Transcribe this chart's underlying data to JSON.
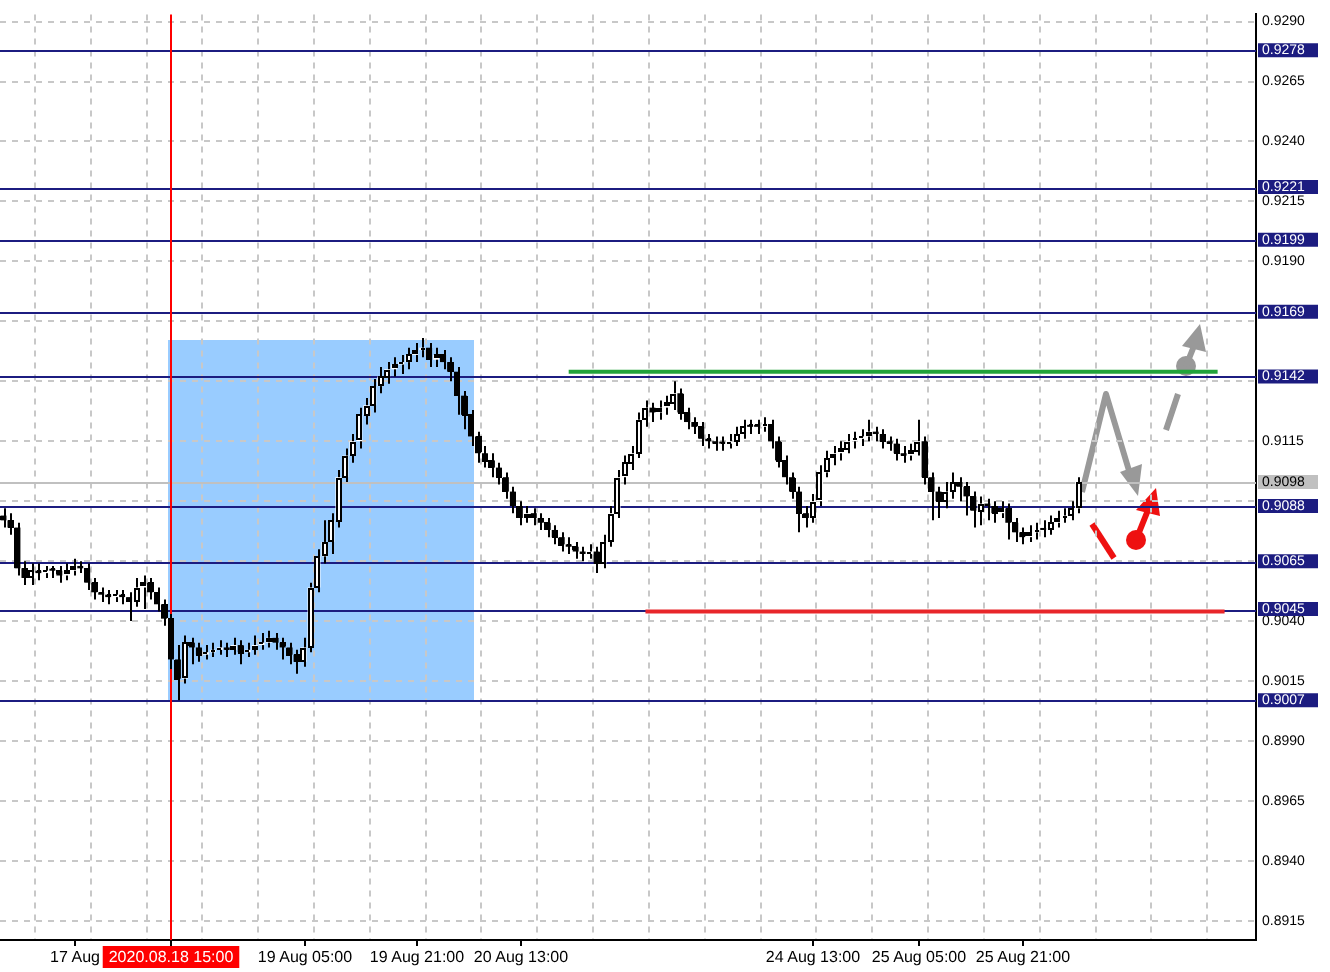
{
  "chart_data": {
    "type": "candlestick",
    "color": "#000000",
    "grid": true,
    "legend": false,
    "categories": [
      null,
      null,
      null,
      null,
      null,
      null,
      null,
      null,
      null,
      null,
      "17 Aug",
      null,
      null,
      null,
      null,
      null,
      null,
      null,
      null,
      null,
      null,
      null,
      null,
      null,
      "2020.08.18 15:00",
      null,
      null,
      null,
      null,
      null,
      null,
      null,
      null,
      null,
      null,
      null,
      null,
      null,
      null,
      null,
      null,
      null,
      null,
      "19 Aug 05:00",
      null,
      null,
      null,
      null,
      null,
      null,
      null,
      null,
      null,
      null,
      null,
      null,
      null,
      null,
      null,
      "19 Aug 21:00",
      null,
      null,
      null,
      null,
      null,
      null,
      null,
      null,
      null,
      null,
      null,
      null,
      null,
      null,
      "20 Aug 13:00",
      null,
      null,
      null,
      null,
      null,
      null,
      null,
      null,
      null,
      null,
      null,
      null,
      null,
      null,
      null,
      null,
      null,
      null,
      null,
      null,
      null,
      null,
      null,
      null,
      null,
      null,
      null,
      null,
      null,
      null,
      null,
      null,
      null,
      null,
      null,
      null,
      null,
      null,
      null,
      null,
      null,
      "24 Aug 13:00",
      null,
      null,
      null,
      null,
      null,
      null,
      null,
      null,
      null,
      null,
      null,
      null,
      null,
      null,
      "25 Aug 05:00",
      null,
      null,
      null,
      null,
      null,
      null,
      null,
      null,
      null,
      null,
      null,
      null,
      null,
      null,
      "25 Aug 21:00",
      null,
      null,
      null,
      null,
      null,
      null,
      null,
      null,
      null,
      null,
      null,
      null,
      null,
      null,
      null,
      null,
      null,
      null,
      null,
      null,
      null,
      null,
      null,
      null,
      null,
      null,
      null,
      null,
      null,
      null,
      null,
      null,
      null
    ],
    "ohlc": [
      [
        0.9084,
        0.9087,
        0.9079,
        0.9082
      ],
      [
        0.9082,
        0.9085,
        0.9076,
        0.9079
      ],
      [
        0.9079,
        0.9081,
        0.9059,
        0.9062
      ],
      [
        0.9062,
        0.9065,
        0.9055,
        0.9058
      ],
      [
        0.9058,
        0.9064,
        0.9055,
        0.9061
      ],
      [
        0.9061,
        0.9064,
        0.9057,
        0.906
      ],
      [
        0.906,
        0.9063,
        0.9058,
        0.9061
      ],
      [
        0.9061,
        0.9063,
        0.9058,
        0.9061
      ],
      [
        0.9061,
        0.9063,
        0.9056,
        0.9059
      ],
      [
        0.9059,
        0.9064,
        0.9057,
        0.9061
      ],
      [
        0.9061,
        0.9066,
        0.9059,
        0.9063
      ],
      [
        0.9063,
        0.9065,
        0.906,
        0.9062
      ],
      [
        0.9062,
        0.9064,
        0.9053,
        0.9056
      ],
      [
        0.9056,
        0.9058,
        0.9049,
        0.9052
      ],
      [
        0.9052,
        0.9054,
        0.9048,
        0.9051
      ],
      [
        0.9051,
        0.9053,
        0.9047,
        0.905
      ],
      [
        0.905,
        0.9053,
        0.9048,
        0.9051
      ],
      [
        0.9051,
        0.9053,
        0.9047,
        0.905
      ],
      [
        0.905,
        0.9052,
        0.904,
        0.9048
      ],
      [
        0.9048,
        0.9058,
        0.9046,
        0.9054
      ],
      [
        0.9054,
        0.9059,
        0.9045,
        0.9056
      ],
      [
        0.9056,
        0.9058,
        0.9049,
        0.9052
      ],
      [
        0.9052,
        0.9054,
        0.9044,
        0.9047
      ],
      [
        0.9047,
        0.9049,
        0.9038,
        0.9041
      ],
      [
        0.9041,
        0.9043,
        0.902,
        0.9024
      ],
      [
        0.9024,
        0.903,
        0.9007,
        0.9016
      ],
      [
        0.9016,
        0.9034,
        0.9014,
        0.9031
      ],
      [
        0.9031,
        0.9033,
        0.9022,
        0.9029
      ],
      [
        0.9029,
        0.9031,
        0.9023,
        0.9026
      ],
      [
        0.9026,
        0.903,
        0.9024,
        0.9027
      ],
      [
        0.9027,
        0.9031,
        0.9025,
        0.9028
      ],
      [
        0.9028,
        0.9032,
        0.9026,
        0.9029
      ],
      [
        0.9029,
        0.9031,
        0.9025,
        0.9028
      ],
      [
        0.9028,
        0.9033,
        0.9026,
        0.903
      ],
      [
        0.903,
        0.9032,
        0.9022,
        0.9027
      ],
      [
        0.9027,
        0.9031,
        0.9025,
        0.9028
      ],
      [
        0.9028,
        0.9034,
        0.9026,
        0.903
      ],
      [
        0.903,
        0.9035,
        0.9028,
        0.9031
      ],
      [
        0.9031,
        0.9036,
        0.9029,
        0.9033
      ],
      [
        0.9033,
        0.9035,
        0.9028,
        0.9031
      ],
      [
        0.9031,
        0.9033,
        0.9024,
        0.9029
      ],
      [
        0.9029,
        0.9031,
        0.9022,
        0.9026
      ],
      [
        0.9026,
        0.9028,
        0.9018,
        0.9023
      ],
      [
        0.9023,
        0.9033,
        0.9021,
        0.9029
      ],
      [
        0.9029,
        0.9056,
        0.9027,
        0.9054
      ],
      [
        0.9054,
        0.907,
        0.9052,
        0.9067
      ],
      [
        0.9067,
        0.9082,
        0.9064,
        0.9073
      ],
      [
        0.9073,
        0.9085,
        0.9068,
        0.9082
      ],
      [
        0.9082,
        0.9103,
        0.9079,
        0.91
      ],
      [
        0.91,
        0.9112,
        0.9098,
        0.9109
      ],
      [
        0.9109,
        0.9118,
        0.9106,
        0.9115
      ],
      [
        0.9115,
        0.9129,
        0.9112,
        0.9126
      ],
      [
        0.9126,
        0.9133,
        0.9122,
        0.913
      ],
      [
        0.913,
        0.9141,
        0.9127,
        0.9138
      ],
      [
        0.9138,
        0.9146,
        0.9135,
        0.9142
      ],
      [
        0.9142,
        0.9148,
        0.9139,
        0.9145
      ],
      [
        0.9145,
        0.915,
        0.9142,
        0.9147
      ],
      [
        0.9147,
        0.9151,
        0.9143,
        0.9148
      ],
      [
        0.9148,
        0.9154,
        0.9145,
        0.9151
      ],
      [
        0.9151,
        0.9156,
        0.9148,
        0.9153
      ],
      [
        0.9153,
        0.9158,
        0.915,
        0.9154
      ],
      [
        0.9154,
        0.9156,
        0.9146,
        0.9149
      ],
      [
        0.9149,
        0.9154,
        0.9146,
        0.9151
      ],
      [
        0.9151,
        0.9153,
        0.9145,
        0.9148
      ],
      [
        0.9148,
        0.915,
        0.914,
        0.9144
      ],
      [
        0.9144,
        0.9146,
        0.9126,
        0.9134
      ],
      [
        0.9134,
        0.9136,
        0.912,
        0.9126
      ],
      [
        0.9126,
        0.9128,
        0.9113,
        0.9117
      ],
      [
        0.9117,
        0.9119,
        0.9106,
        0.911
      ],
      [
        0.911,
        0.9113,
        0.9104,
        0.9107
      ],
      [
        0.9107,
        0.911,
        0.91,
        0.9104
      ],
      [
        0.9104,
        0.9106,
        0.9097,
        0.91
      ],
      [
        0.91,
        0.9102,
        0.9091,
        0.9094
      ],
      [
        0.9094,
        0.9096,
        0.9085,
        0.9088
      ],
      [
        0.9088,
        0.909,
        0.908,
        0.9083
      ],
      [
        0.9083,
        0.9088,
        0.9081,
        0.9085
      ],
      [
        0.9085,
        0.9087,
        0.908,
        0.9083
      ],
      [
        0.9083,
        0.9085,
        0.9078,
        0.9081
      ],
      [
        0.9081,
        0.9083,
        0.9075,
        0.9078
      ],
      [
        0.9078,
        0.908,
        0.9072,
        0.9075
      ],
      [
        0.9075,
        0.9077,
        0.9069,
        0.9072
      ],
      [
        0.9072,
        0.9075,
        0.9068,
        0.9071
      ],
      [
        0.9071,
        0.9073,
        0.9066,
        0.9069
      ],
      [
        0.9069,
        0.9071,
        0.9065,
        0.9068
      ],
      [
        0.9068,
        0.9072,
        0.9066,
        0.9069
      ],
      [
        0.9069,
        0.9071,
        0.906,
        0.9064
      ],
      [
        0.9064,
        0.9076,
        0.9062,
        0.9073
      ],
      [
        0.9073,
        0.9088,
        0.9071,
        0.9085
      ],
      [
        0.9085,
        0.9103,
        0.9083,
        0.91
      ],
      [
        0.91,
        0.9109,
        0.9097,
        0.9106
      ],
      [
        0.9106,
        0.9113,
        0.9103,
        0.911
      ],
      [
        0.911,
        0.9127,
        0.9108,
        0.9124
      ],
      [
        0.9124,
        0.9132,
        0.9121,
        0.9129
      ],
      [
        0.9129,
        0.9131,
        0.9123,
        0.9127
      ],
      [
        0.9127,
        0.9132,
        0.9124,
        0.9129
      ],
      [
        0.9129,
        0.9134,
        0.9126,
        0.9131
      ],
      [
        0.9131,
        0.914,
        0.9128,
        0.9135
      ],
      [
        0.9135,
        0.9137,
        0.9124,
        0.9127
      ],
      [
        0.9127,
        0.9129,
        0.912,
        0.9123
      ],
      [
        0.9123,
        0.9125,
        0.9118,
        0.9121
      ],
      [
        0.9121,
        0.9123,
        0.9113,
        0.9116
      ],
      [
        0.9116,
        0.9118,
        0.9112,
        0.9115
      ],
      [
        0.9115,
        0.9117,
        0.9111,
        0.9114
      ],
      [
        0.9114,
        0.9117,
        0.9111,
        0.9114
      ],
      [
        0.9114,
        0.9118,
        0.9112,
        0.9115
      ],
      [
        0.9115,
        0.9121,
        0.9113,
        0.9118
      ],
      [
        0.9118,
        0.9124,
        0.9116,
        0.9121
      ],
      [
        0.9121,
        0.9124,
        0.9118,
        0.9121
      ],
      [
        0.9121,
        0.9124,
        0.9118,
        0.9121
      ],
      [
        0.9121,
        0.9125,
        0.9119,
        0.9122
      ],
      [
        0.9122,
        0.9124,
        0.9112,
        0.9115
      ],
      [
        0.9115,
        0.9117,
        0.9104,
        0.9107
      ],
      [
        0.9107,
        0.9109,
        0.9097,
        0.91
      ],
      [
        0.91,
        0.9102,
        0.9091,
        0.9094
      ],
      [
        0.9094,
        0.9096,
        0.9077,
        0.9085
      ],
      [
        0.9085,
        0.9088,
        0.9079,
        0.9083
      ],
      [
        0.9083,
        0.9093,
        0.9081,
        0.909
      ],
      [
        0.909,
        0.9105,
        0.9088,
        0.9102
      ],
      [
        0.9102,
        0.9111,
        0.91,
        0.9108
      ],
      [
        0.9108,
        0.9113,
        0.9105,
        0.911
      ],
      [
        0.911,
        0.9115,
        0.9107,
        0.9112
      ],
      [
        0.9112,
        0.9118,
        0.911,
        0.9115
      ],
      [
        0.9115,
        0.9119,
        0.9112,
        0.9116
      ],
      [
        0.9116,
        0.912,
        0.9113,
        0.9117
      ],
      [
        0.9117,
        0.9124,
        0.9115,
        0.9119
      ],
      [
        0.9119,
        0.9121,
        0.9115,
        0.9118
      ],
      [
        0.9118,
        0.912,
        0.9112,
        0.9115
      ],
      [
        0.9115,
        0.9117,
        0.9111,
        0.9114
      ],
      [
        0.9114,
        0.9116,
        0.9107,
        0.911
      ],
      [
        0.911,
        0.9113,
        0.9106,
        0.9109
      ],
      [
        0.9109,
        0.9114,
        0.9107,
        0.9111
      ],
      [
        0.9111,
        0.9124,
        0.9109,
        0.9115
      ],
      [
        0.9115,
        0.9117,
        0.9097,
        0.91
      ],
      [
        0.91,
        0.9102,
        0.9082,
        0.9094
      ],
      [
        0.9094,
        0.9096,
        0.9083,
        0.909
      ],
      [
        0.909,
        0.9098,
        0.9087,
        0.9094
      ],
      [
        0.9094,
        0.9102,
        0.9091,
        0.9098
      ],
      [
        0.9098,
        0.91,
        0.909,
        0.9096
      ],
      [
        0.9096,
        0.9098,
        0.9084,
        0.9092
      ],
      [
        0.9092,
        0.9094,
        0.9079,
        0.9086
      ],
      [
        0.9086,
        0.9092,
        0.908,
        0.9089
      ],
      [
        0.9089,
        0.9091,
        0.9082,
        0.9088
      ],
      [
        0.9088,
        0.909,
        0.9081,
        0.9085
      ],
      [
        0.9085,
        0.909,
        0.9083,
        0.9087
      ],
      [
        0.9087,
        0.9089,
        0.9074,
        0.9081
      ],
      [
        0.9081,
        0.9083,
        0.9073,
        0.9077
      ],
      [
        0.9077,
        0.9079,
        0.9072,
        0.9075
      ],
      [
        0.9075,
        0.908,
        0.9073,
        0.9077
      ],
      [
        0.9077,
        0.9081,
        0.9074,
        0.9078
      ],
      [
        0.9078,
        0.9082,
        0.9075,
        0.9078
      ],
      [
        0.9078,
        0.9084,
        0.9076,
        0.9081
      ],
      [
        0.9081,
        0.9086,
        0.9079,
        0.9083
      ],
      [
        0.9083,
        0.9087,
        0.9081,
        0.9084
      ],
      [
        0.9084,
        0.909,
        0.9082,
        0.9087
      ],
      [
        0.9087,
        0.91,
        0.9085,
        0.9098
      ],
      null,
      null,
      null,
      null,
      null,
      null,
      null,
      null,
      null,
      null,
      null,
      null,
      null,
      null,
      null,
      null,
      null,
      null,
      null,
      null,
      null,
      null,
      null,
      null,
      null
    ],
    "colors": [
      "#000000",
      "#000000",
      "#000000",
      "#000000",
      "#ffffff",
      "#000000",
      "#ffffff",
      "#000000",
      "#000000",
      "#ffffff",
      "#ffffff",
      "#000000",
      "#000000",
      "#000000",
      "#000000",
      "#000000",
      "#ffffff",
      "#000000",
      "#000000",
      "#ffffff",
      "#ffffff",
      "#000000",
      "#000000",
      "#000000",
      "#000000",
      "#000000",
      "#ffffff",
      "#000000",
      "#000000",
      "#ffffff",
      "#ffffff",
      "#ffffff",
      "#000000",
      "#ffffff",
      "#000000",
      "#ffffff",
      "#ffffff",
      "#ffffff",
      "#ffffff",
      "#000000",
      "#000000",
      "#000000",
      "#000000",
      "#ffffff",
      "#ffffff",
      "#ffffff",
      "#ffffff",
      "#ffffff",
      "#ffffff",
      "#ffffff",
      "#ffffff",
      "#ffffff",
      "#ffffff",
      "#ffffff",
      "#ffffff",
      "#ffffff",
      "#ffffff",
      "#ffffff",
      "#ffffff",
      "#ffffff",
      "#ffffff",
      "#000000",
      "#ffffff",
      "#000000",
      "#000000",
      "#000000",
      "#000000",
      "#000000",
      "#000000",
      "#000000",
      "#000000",
      "#000000",
      "#000000",
      "#000000",
      "#000000",
      "#ffffff",
      "#000000",
      "#000000",
      "#000000",
      "#000000",
      "#000000",
      "#000000",
      "#000000",
      "#000000",
      "#ffffff",
      "#000000",
      "#ffffff",
      "#ffffff",
      "#ffffff",
      "#ffffff",
      "#ffffff",
      "#ffffff",
      "#ffffff",
      "#000000",
      "#ffffff",
      "#ffffff",
      "#ffffff",
      "#000000",
      "#000000",
      "#000000",
      "#000000",
      "#000000",
      "#000000",
      "#000000",
      "#ffffff",
      "#ffffff",
      "#ffffff",
      "#000000",
      "#000000",
      "#ffffff",
      "#000000",
      "#000000",
      "#000000",
      "#000000",
      "#000000",
      "#000000",
      "#ffffff",
      "#ffffff",
      "#ffffff",
      "#ffffff",
      "#ffffff",
      "#ffffff",
      "#ffffff",
      "#ffffff",
      "#ffffff",
      "#000000",
      "#000000",
      "#000000",
      "#000000",
      "#000000",
      "#ffffff",
      "#ffffff",
      "#000000",
      "#000000",
      "#000000",
      "#ffffff",
      "#ffffff",
      "#000000",
      "#000000",
      "#000000",
      "#ffffff",
      "#000000",
      "#000000",
      "#ffffff",
      "#000000",
      "#000000",
      "#000000",
      "#ffffff",
      "#ffffff",
      "#000000",
      "#ffffff",
      "#ffffff",
      "#ffffff",
      "#ffffff",
      "#ffffff",
      null,
      null,
      null,
      null,
      null,
      null,
      null,
      null,
      null,
      null,
      null,
      null,
      null,
      null,
      null,
      null,
      null,
      null,
      null,
      null,
      null,
      null,
      null,
      null,
      null
    ],
    "series": [
      {
        "type": "line",
        "color": "#22a33a",
        "values": [
          null,
          null,
          null,
          null,
          null,
          null,
          null,
          null,
          null,
          null,
          null,
          null,
          null,
          null,
          null,
          null,
          null,
          null,
          null,
          null,
          null,
          null,
          null,
          null,
          null,
          null,
          null,
          null,
          null,
          null,
          null,
          null,
          null,
          null,
          null,
          null,
          null,
          null,
          null,
          null,
          null,
          null,
          null,
          null,
          null,
          null,
          null,
          null,
          null,
          null,
          null,
          null,
          null,
          null,
          null,
          null,
          null,
          null,
          null,
          null,
          null,
          null,
          null,
          null,
          null,
          null,
          null,
          null,
          null,
          null,
          null,
          null,
          null,
          null,
          null,
          null,
          null,
          null,
          null,
          null,
          null,
          0.9144,
          null,
          null,
          null,
          null,
          null,
          null,
          null,
          null,
          null,
          null,
          null,
          null,
          null,
          null,
          null,
          null,
          null,
          null,
          null,
          null,
          null,
          null,
          null,
          null,
          null,
          null,
          null,
          null,
          null,
          null,
          null,
          null,
          null,
          null,
          null,
          null,
          null,
          null,
          null,
          null,
          null,
          null,
          null,
          null,
          null,
          null,
          null,
          null,
          null,
          null,
          null,
          null,
          null,
          null,
          null,
          null,
          null,
          null,
          null,
          null,
          null,
          null,
          null,
          null,
          null,
          null,
          null,
          null,
          null,
          null,
          null,
          null,
          null,
          null,
          null,
          null,
          null,
          null,
          null,
          null,
          null,
          null,
          null,
          null,
          null,
          null,
          null,
          null,
          null,
          null,
          null,
          null,
          0.9144,
          null,
          null,
          null,
          null,
          null
        ]
      },
      {
        "type": "line",
        "color": "#e8262a",
        "values": [
          null,
          null,
          null,
          null,
          null,
          null,
          null,
          null,
          null,
          null,
          null,
          null,
          null,
          null,
          null,
          null,
          null,
          null,
          null,
          null,
          null,
          null,
          null,
          null,
          null,
          null,
          null,
          null,
          null,
          null,
          null,
          null,
          null,
          null,
          null,
          null,
          null,
          null,
          null,
          null,
          null,
          null,
          null,
          null,
          null,
          null,
          null,
          null,
          null,
          null,
          null,
          null,
          null,
          null,
          null,
          null,
          null,
          null,
          null,
          null,
          null,
          null,
          null,
          null,
          null,
          null,
          null,
          null,
          null,
          null,
          null,
          null,
          null,
          null,
          null,
          null,
          null,
          null,
          null,
          null,
          null,
          null,
          null,
          null,
          null,
          null,
          null,
          null,
          null,
          null,
          null,
          null,
          0.9044,
          null,
          null,
          null,
          null,
          null,
          null,
          null,
          null,
          null,
          null,
          null,
          null,
          null,
          null,
          null,
          null,
          null,
          null,
          null,
          null,
          null,
          null,
          null,
          null,
          null,
          null,
          null,
          null,
          null,
          null,
          null,
          null,
          null,
          null,
          null,
          null,
          null,
          null,
          null,
          null,
          null,
          null,
          null,
          null,
          null,
          null,
          null,
          null,
          null,
          null,
          null,
          null,
          null,
          null,
          null,
          null,
          null,
          null,
          null,
          null,
          null,
          null,
          null,
          null,
          null,
          null,
          null,
          null,
          null,
          null,
          null,
          null,
          null,
          null,
          null,
          null,
          null,
          null,
          null,
          null,
          null,
          null,
          0.9044,
          null,
          null,
          null,
          null
        ]
      }
    ],
    "ylim": [
      0.8907,
      0.9293
    ],
    "yticks": [
      {
        "value": 0.929,
        "label": "0.9290"
      },
      {
        "value": 0.9265,
        "label": "0.9265"
      },
      {
        "value": 0.924,
        "label": "0.9240"
      },
      {
        "value": 0.9215,
        "label": "0.9215"
      },
      {
        "value": 0.919,
        "label": "0.9190"
      },
      {
        "value": 0.9165,
        "label": null
      },
      {
        "value": 0.914,
        "label": null
      },
      {
        "value": 0.9115,
        "label": "0.9115"
      },
      {
        "value": 0.909,
        "label": null
      },
      {
        "value": 0.9065,
        "label": null
      },
      {
        "value": 0.904,
        "label": "0.9040"
      },
      {
        "value": 0.9015,
        "label": "0.9015"
      },
      {
        "value": 0.899,
        "label": "0.8990"
      },
      {
        "value": 0.8965,
        "label": "0.8965"
      },
      {
        "value": 0.894,
        "label": "0.8940"
      },
      {
        "value": 0.8915,
        "label": "0.8915"
      }
    ],
    "ref_lines": [
      {
        "axis": "y",
        "value": 0.9278,
        "label": "0.9278",
        "color": "#1c1c80"
      },
      {
        "axis": "y",
        "value": 0.9221,
        "label": "0.9221",
        "color": "#1c1c80"
      },
      {
        "axis": "y",
        "value": 0.9199,
        "label": "0.9199",
        "color": "#1c1c80"
      },
      {
        "axis": "y",
        "value": 0.9169,
        "label": "0.9169",
        "color": "#1c1c80"
      },
      {
        "axis": "y",
        "value": 0.9142,
        "label": "0.9142",
        "color": "#1c1c80"
      },
      {
        "axis": "y",
        "value": 0.9098,
        "label": "0.9098",
        "color": "#c0c0c0"
      },
      {
        "axis": "y",
        "value": 0.9088,
        "label": "0.9088",
        "color": "#1c1c80"
      },
      {
        "axis": "y",
        "value": 0.9065,
        "label": "0.9065",
        "color": "#1c1c80"
      },
      {
        "axis": "y",
        "value": 0.9045,
        "label": "0.9045",
        "color": "#1c1c80"
      },
      {
        "axis": "y",
        "value": 0.9007,
        "label": "0.9007",
        "color": "#1c1c80"
      },
      {
        "axis": "x",
        "value": "2020.08.18 15:00",
        "color": "#ff0000"
      }
    ]
  }
}
